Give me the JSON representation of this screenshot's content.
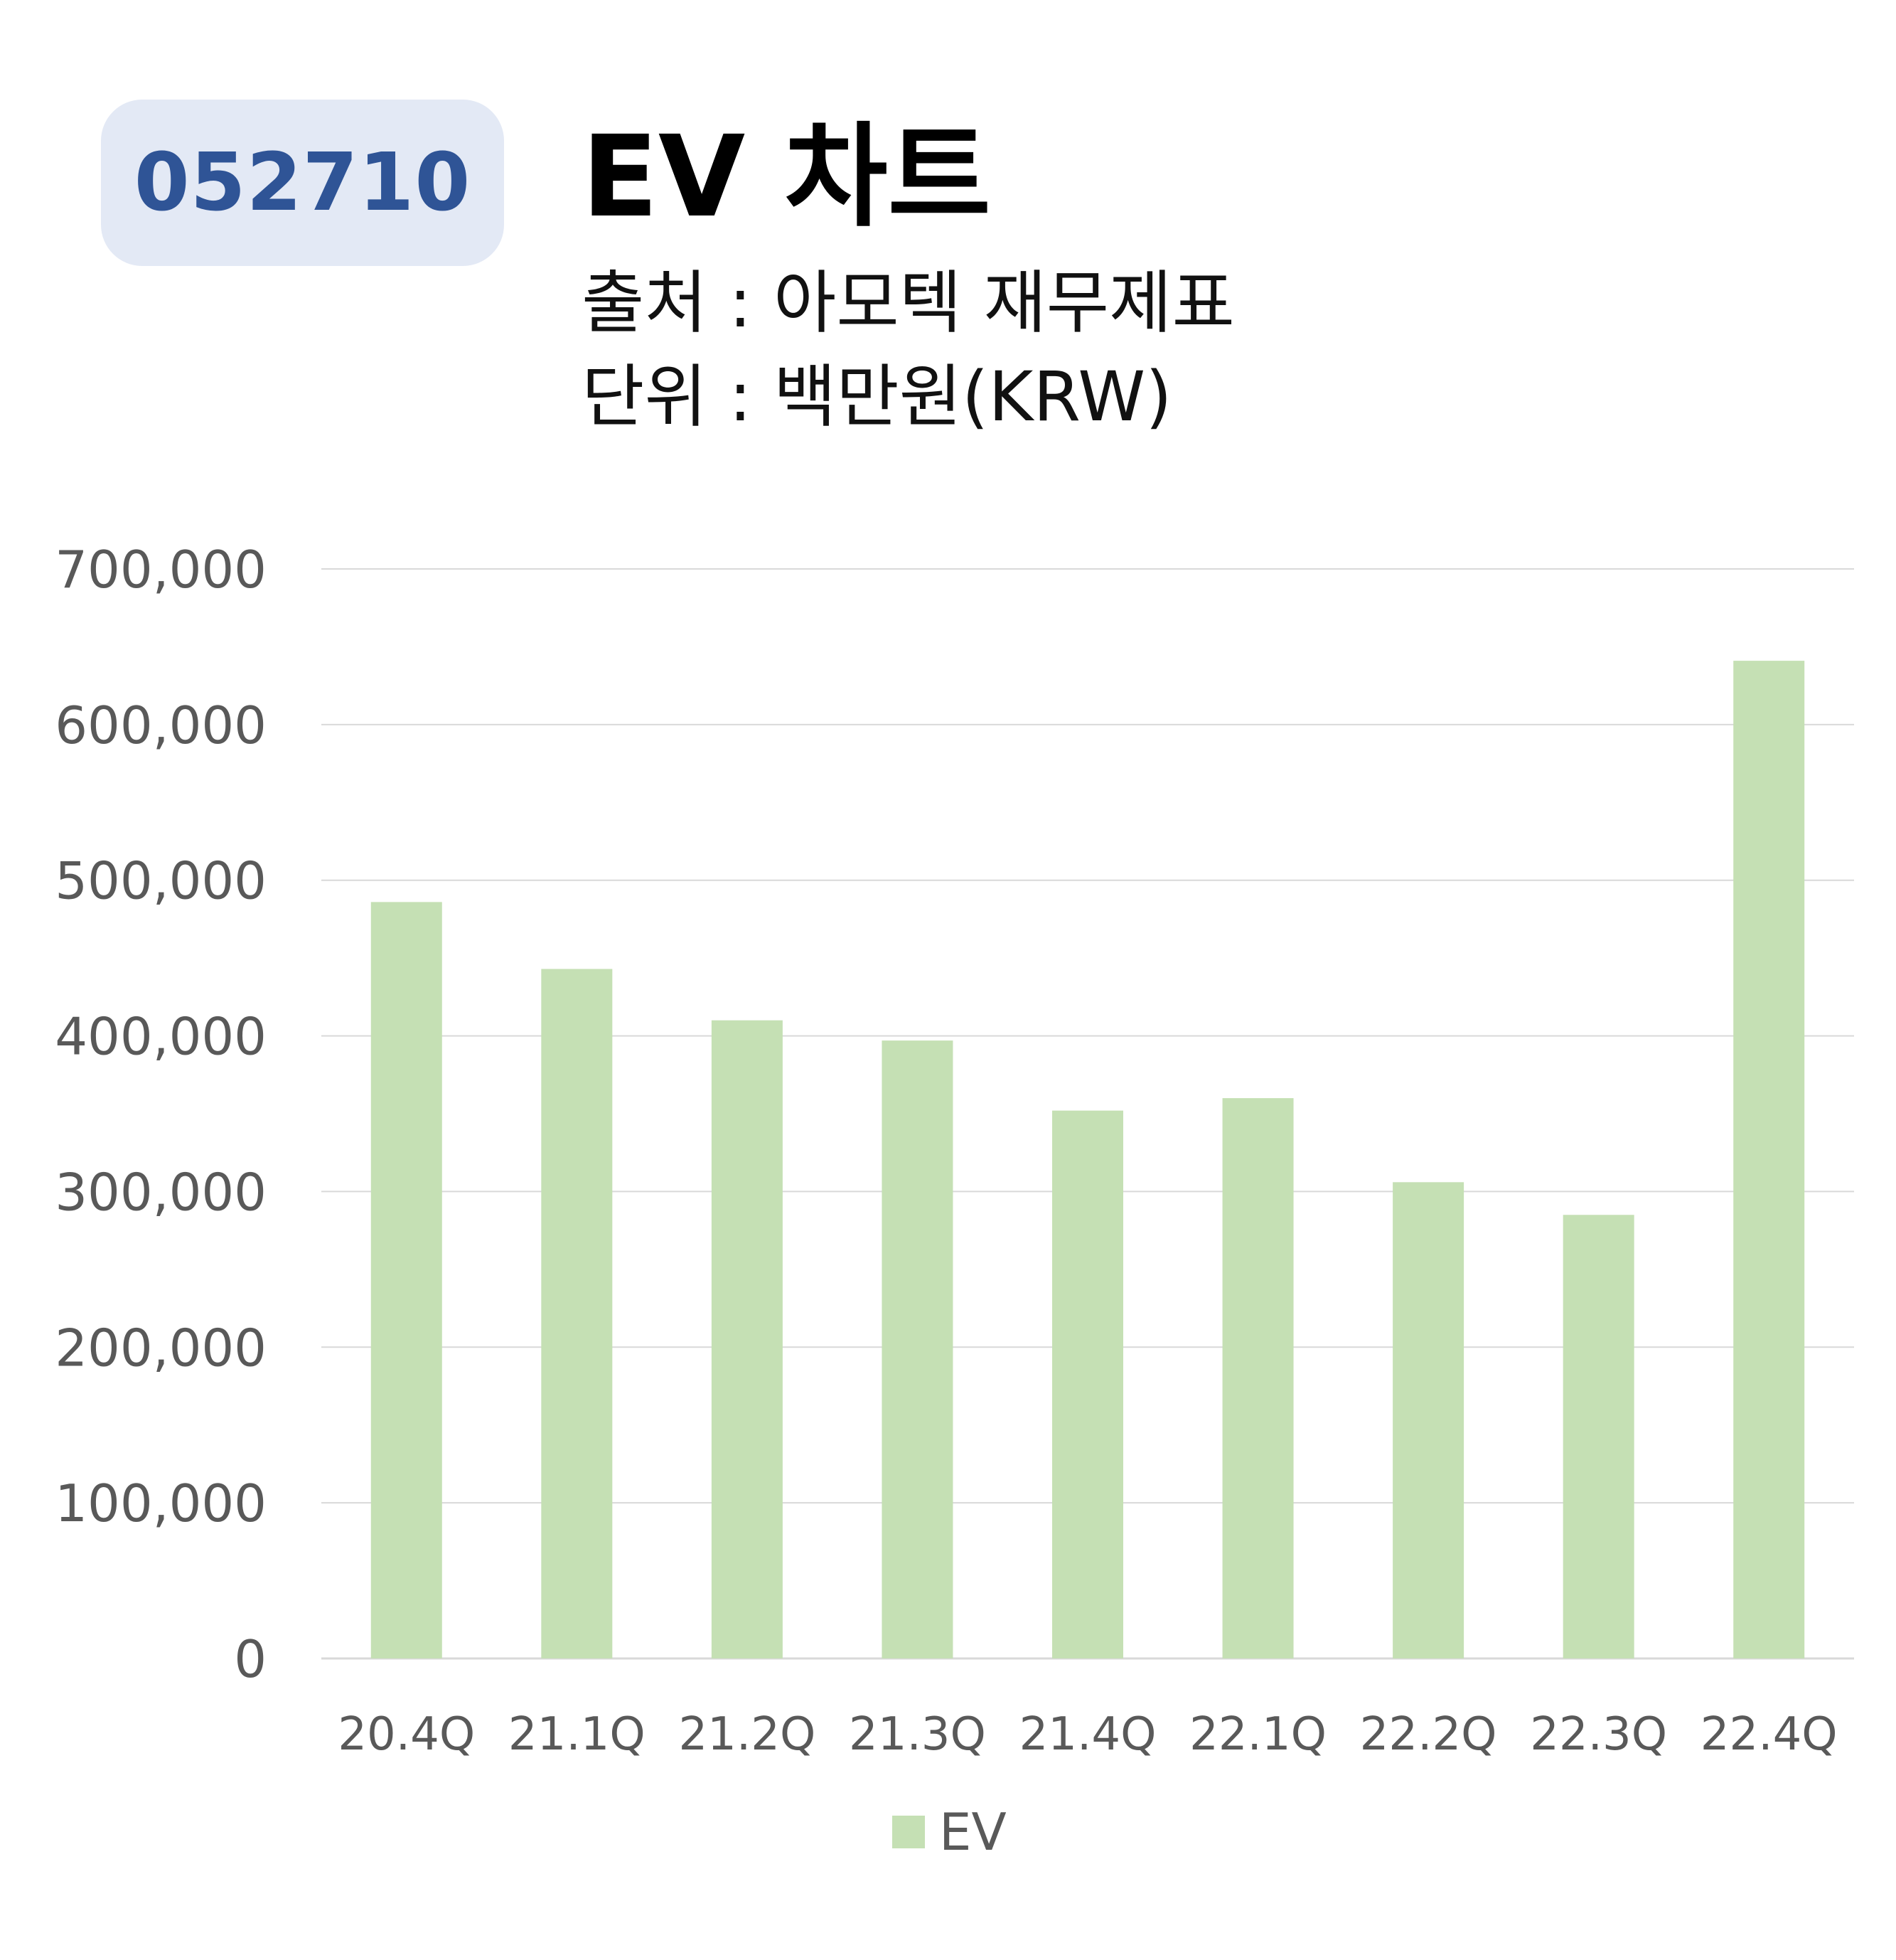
{
  "header": {
    "ticker": "052710",
    "title": "EV 차트",
    "source": "출처 : 아모텍 재무제표",
    "unit": "단위 : 백만원(KRW)"
  },
  "colors": {
    "bar": "#c5e0b4",
    "badge_bg": "#e3e9f5",
    "ticker_text": "#2f5496",
    "grid": "#d9d9d9",
    "axis_text": "#595959"
  },
  "chart_data": {
    "type": "bar",
    "categories": [
      "20.4Q",
      "21.1Q",
      "21.2Q",
      "21.3Q",
      "21.4Q",
      "22.1Q",
      "22.2Q",
      "22.3Q",
      "22.4Q"
    ],
    "series": [
      {
        "name": "EV",
        "values": [
          486000,
          443000,
          410000,
          397000,
          352000,
          360000,
          306000,
          285000,
          641000
        ]
      }
    ],
    "yticks": [
      "0",
      "100,000",
      "200,000",
      "300,000",
      "400,000",
      "500,000",
      "600,000",
      "700,000"
    ],
    "ylim": [
      0,
      700000
    ],
    "grid": true,
    "legend_position": "bottom"
  }
}
